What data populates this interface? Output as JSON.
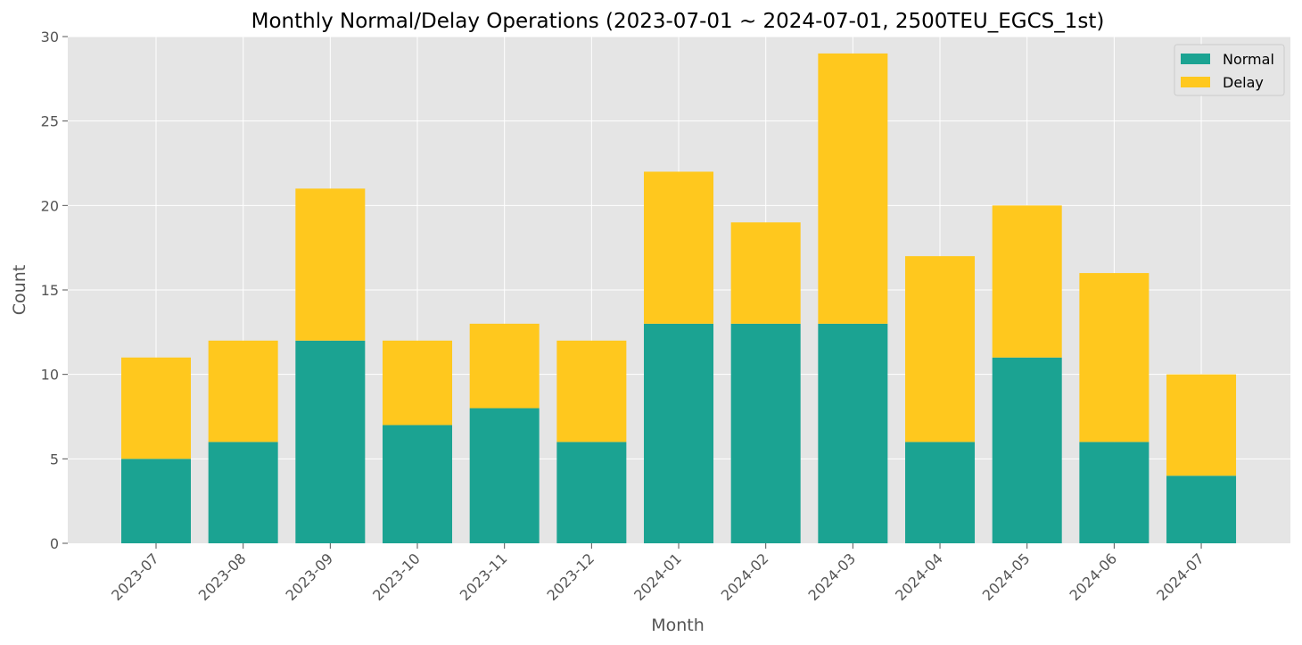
{
  "chart_data": {
    "type": "bar",
    "stacked": true,
    "title": "Monthly Normal/Delay Operations (2023-07-01 ~ 2024-07-01, 2500TEU_EGCS_1st)",
    "xlabel": "Month",
    "ylabel": "Count",
    "categories": [
      "2023-07",
      "2023-08",
      "2023-09",
      "2023-10",
      "2023-11",
      "2023-12",
      "2024-01",
      "2024-02",
      "2024-03",
      "2024-04",
      "2024-05",
      "2024-06",
      "2024-07"
    ],
    "series": [
      {
        "name": "Normal",
        "color": "#1ba392",
        "values": [
          5,
          6,
          12,
          7,
          8,
          6,
          13,
          13,
          13,
          6,
          11,
          6,
          4
        ]
      },
      {
        "name": "Delay",
        "color": "#ffc81e",
        "values": [
          6,
          6,
          9,
          5,
          5,
          6,
          9,
          6,
          16,
          11,
          9,
          10,
          6
        ]
      }
    ],
    "ylim": [
      0,
      30
    ],
    "yticks": [
      0,
      5,
      10,
      15,
      20,
      25,
      30
    ],
    "grid": true,
    "legend_position": "top-right",
    "tick_label_rotation": 45
  }
}
